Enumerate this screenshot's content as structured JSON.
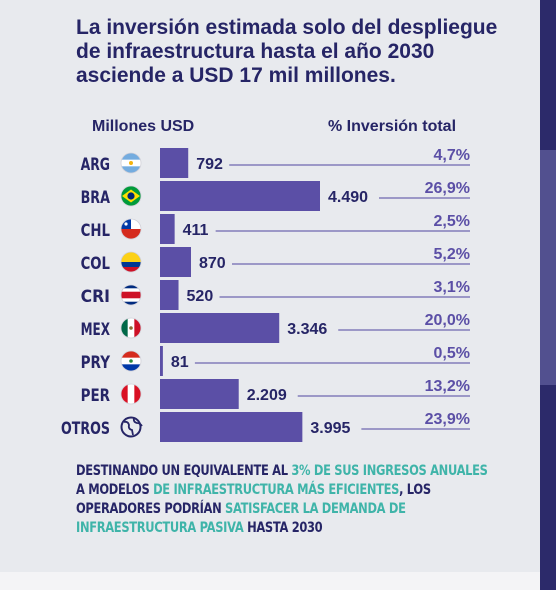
{
  "title": "La inversión estimada solo del despliegue de infraestructura hasta el año 2030 asciende a USD 17 mil millones.",
  "chart_data": {
    "type": "bar",
    "orientation": "horizontal",
    "headers": {
      "values": "Millones USD",
      "percent": "% Inversión total"
    },
    "categories": [
      "ARG",
      "BRA",
      "CHL",
      "COL",
      "CRI",
      "MEX",
      "PRY",
      "PER",
      "OTROS"
    ],
    "icons": [
      "flag-argentina-icon",
      "flag-brazil-icon",
      "flag-chile-icon",
      "flag-colombia-icon",
      "flag-costa-rica-icon",
      "flag-mexico-icon",
      "flag-paraguay-icon",
      "flag-peru-icon",
      "globe-icon"
    ],
    "values": [
      792,
      4490,
      411,
      870,
      520,
      3346,
      81,
      2209,
      3995
    ],
    "value_labels": [
      "792",
      "4.490",
      "411",
      "870",
      "520",
      "3.346",
      "81",
      "2.209",
      "3.995"
    ],
    "percents": [
      4.7,
      26.9,
      2.5,
      5.2,
      3.1,
      20.0,
      0.5,
      13.2,
      23.9
    ],
    "percent_labels": [
      "4,7%",
      "26,9%",
      "2,5%",
      "5,2%",
      "3,1%",
      "20,0%",
      "0,5%",
      "13,2%",
      "23,9%"
    ],
    "bar_color": "#5b4fa6",
    "text_color": "#262566",
    "leader_color": "#6e68b0"
  },
  "footer": {
    "line1_a": "DESTINANDO UN EQUIVALENTE AL ",
    "line1_b": "3% DE SUS INGRESOS ANUALES",
    "line2_a": "A MODELOS ",
    "line2_b": "DE INFRAESTRUCTURA MÁS EFICIENTES",
    "line2_c": ", LOS",
    "line3_a": "OPERADORES PODRÍAN ",
    "line3_b": "SATISFACER LA DEMANDA DE",
    "line4_a": "INFRAESTRUCTURA PASIVA",
    "line4_b": " HASTA 2030"
  },
  "colors": {
    "accent": "#3fb4a9",
    "navy": "#262566",
    "sidebar": "#2c2a6a"
  }
}
